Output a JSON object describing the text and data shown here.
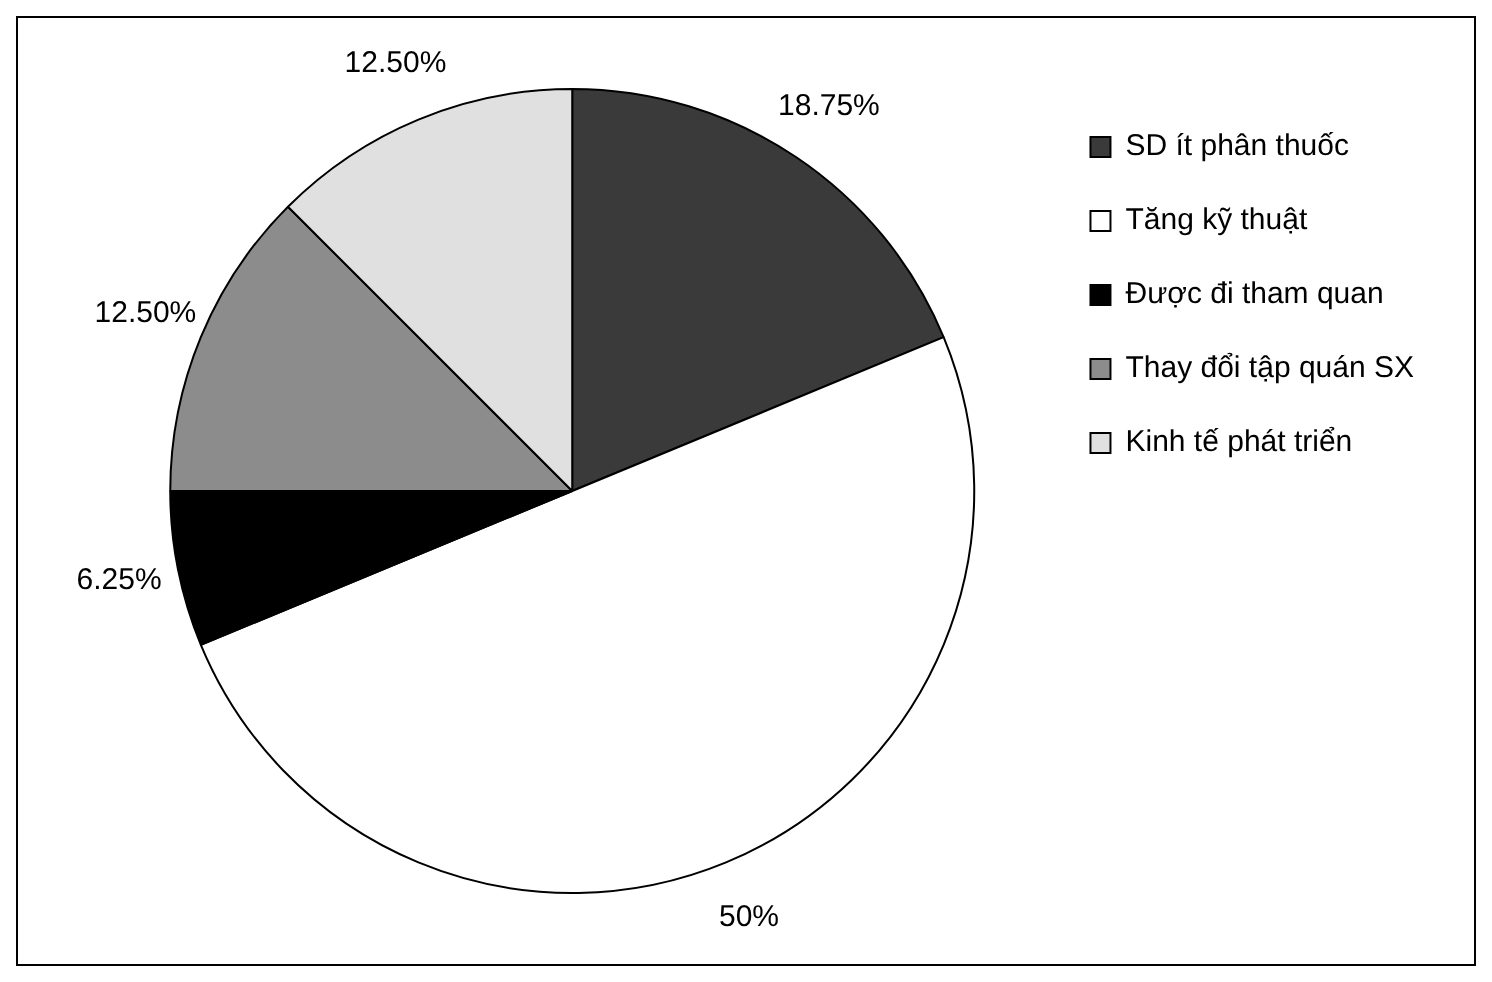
{
  "chart_data": {
    "type": "pie",
    "categories": [
      "SD ít phân thuốc",
      "Tăng kỹ thuật",
      "Được đi tham quan",
      "Thay đổi tập quán SX",
      "Kinh tế phát triển"
    ],
    "values": [
      18.75,
      50,
      6.25,
      12.5,
      12.5
    ],
    "colors": [
      "#3a3a3a",
      "#ffffff",
      "#000000",
      "#8c8c8c",
      "#e0e0e0"
    ],
    "value_labels": [
      "18.75%",
      "50%",
      "6.25%",
      "12.50%",
      "12.50%"
    ],
    "legend": "right"
  }
}
